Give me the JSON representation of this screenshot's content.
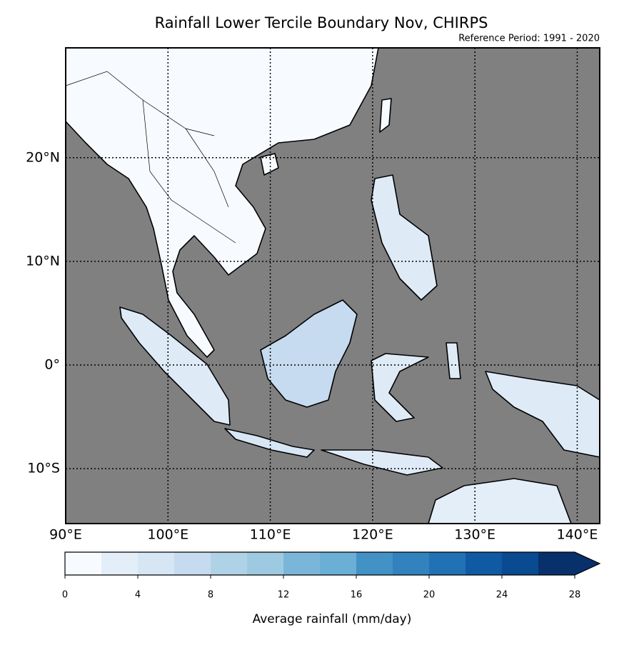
{
  "map": {
    "title": "Rainfall Lower Tercile Boundary Nov, CHIRPS",
    "subtitle": "Reference Period: 1991 - 2020",
    "xlim": [
      90,
      142.2
    ],
    "ylim": [
      -15.3,
      30.6
    ],
    "xticks": [
      {
        "value": 90,
        "label": "90°E"
      },
      {
        "value": 100,
        "label": "100°E"
      },
      {
        "value": 110,
        "label": "110°E"
      },
      {
        "value": 120,
        "label": "120°E"
      },
      {
        "value": 130,
        "label": "130°E"
      },
      {
        "value": 140,
        "label": "140°E"
      }
    ],
    "yticks": [
      {
        "value": -10,
        "label": "10°S"
      },
      {
        "value": 0,
        "label": "0°"
      },
      {
        "value": 10,
        "label": "10°N"
      },
      {
        "value": 20,
        "label": "20°N"
      }
    ],
    "colorbar": {
      "label": "Average rainfall (mm/day)",
      "levels": [
        0,
        2,
        4,
        6,
        8,
        10,
        12,
        14,
        16,
        18,
        20,
        22,
        24,
        26,
        28
      ],
      "ticks": [
        0,
        4,
        8,
        12,
        16,
        20,
        24,
        28
      ],
      "colors": [
        "#f7fbff",
        "#e3eef9",
        "#d6e6f4",
        "#c6dbef",
        "#b0d2e7",
        "#9ecae1",
        "#7ab6d9",
        "#6baed6",
        "#4292c6",
        "#3282be",
        "#2171b5",
        "#0f5aa3",
        "#0a4a90",
        "#08306b"
      ],
      "extend_color": "#08306b"
    }
  }
}
